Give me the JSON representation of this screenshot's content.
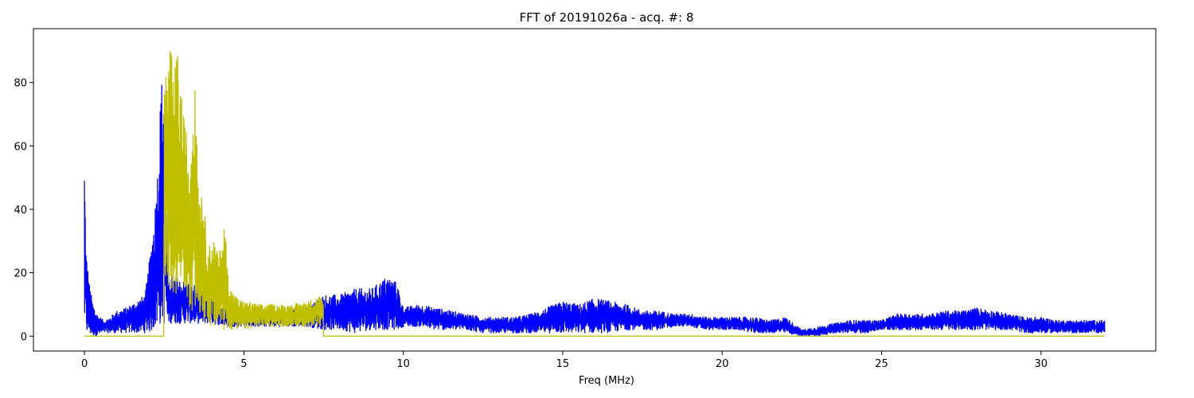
{
  "chart_data": {
    "type": "line",
    "title": "FFT of 20191026a - acq. #: 8",
    "xlabel": "Freq (MHz)",
    "ylabel": "",
    "xlim": [
      -1.6,
      33.6
    ],
    "ylim": [
      -4.7,
      97.0
    ],
    "xticks": [
      0,
      5,
      10,
      15,
      20,
      25,
      30
    ],
    "yticks": [
      0,
      20,
      40,
      60,
      80
    ],
    "grid": false,
    "legend": "none",
    "series": [
      {
        "color": "#0000ff",
        "envelope": [
          [
            0.0,
            0,
            58
          ],
          [
            0.05,
            0,
            28
          ],
          [
            0.15,
            0,
            17
          ],
          [
            0.25,
            0,
            11
          ],
          [
            0.4,
            0,
            7
          ],
          [
            0.6,
            1,
            5
          ],
          [
            0.8,
            1,
            6
          ],
          [
            1.0,
            1,
            8
          ],
          [
            1.3,
            1,
            9
          ],
          [
            1.6,
            1,
            11
          ],
          [
            1.9,
            1,
            13
          ],
          [
            2.05,
            1,
            25
          ],
          [
            2.2,
            2,
            40
          ],
          [
            2.3,
            2,
            55
          ],
          [
            2.4,
            3,
            80
          ],
          [
            2.5,
            3,
            88
          ],
          [
            2.6,
            4,
            20
          ],
          [
            3.0,
            4,
            18
          ],
          [
            3.5,
            4,
            16
          ],
          [
            4.0,
            4,
            12
          ],
          [
            4.5,
            3,
            9
          ],
          [
            5.0,
            3,
            8
          ],
          [
            6.0,
            3,
            8
          ],
          [
            7.0,
            3,
            9
          ],
          [
            7.5,
            2,
            13
          ],
          [
            8.0,
            2,
            13
          ],
          [
            8.5,
            1,
            15
          ],
          [
            9.0,
            2,
            15
          ],
          [
            9.5,
            2,
            19
          ],
          [
            9.8,
            2,
            17
          ],
          [
            10.0,
            3,
            9
          ],
          [
            10.5,
            3,
            10
          ],
          [
            11.0,
            2,
            9
          ],
          [
            11.5,
            2,
            8
          ],
          [
            12.0,
            2,
            7
          ],
          [
            12.5,
            1,
            6
          ],
          [
            13.0,
            1,
            6
          ],
          [
            13.5,
            1,
            6
          ],
          [
            14.0,
            1,
            7
          ],
          [
            14.5,
            1,
            9
          ],
          [
            15.0,
            1,
            11
          ],
          [
            15.5,
            1,
            10
          ],
          [
            16.0,
            1,
            12
          ],
          [
            16.5,
            1,
            11
          ],
          [
            17.0,
            2,
            10
          ],
          [
            17.5,
            2,
            8
          ],
          [
            18.0,
            2,
            8
          ],
          [
            18.5,
            3,
            7
          ],
          [
            19.0,
            3,
            7
          ],
          [
            19.5,
            2,
            6
          ],
          [
            20.0,
            2,
            6
          ],
          [
            20.5,
            2,
            6
          ],
          [
            21.0,
            1,
            6
          ],
          [
            21.5,
            1,
            5
          ],
          [
            22.0,
            1,
            6
          ],
          [
            22.5,
            0,
            2
          ],
          [
            23.0,
            0,
            3
          ],
          [
            23.5,
            1,
            4
          ],
          [
            24.0,
            1,
            5
          ],
          [
            24.5,
            1,
            5
          ],
          [
            25.0,
            2,
            5
          ],
          [
            25.5,
            2,
            7
          ],
          [
            26.0,
            2,
            7
          ],
          [
            26.5,
            2,
            7
          ],
          [
            27.0,
            2,
            8
          ],
          [
            27.5,
            2,
            8
          ],
          [
            28.0,
            2,
            9
          ],
          [
            28.5,
            2,
            8
          ],
          [
            29.0,
            2,
            7
          ],
          [
            29.5,
            1,
            6
          ],
          [
            30.0,
            1,
            6
          ],
          [
            30.5,
            1,
            5
          ],
          [
            31.0,
            1,
            5
          ],
          [
            31.5,
            1,
            5
          ],
          [
            32.0,
            1,
            5
          ]
        ]
      },
      {
        "color": "#bfbf00",
        "envelope": [
          [
            0.0,
            0,
            0
          ],
          [
            2.49,
            0,
            0
          ],
          [
            2.5,
            20,
            88
          ],
          [
            2.6,
            10,
            85
          ],
          [
            2.7,
            15,
            93
          ],
          [
            2.8,
            12,
            80
          ],
          [
            2.9,
            14,
            92
          ],
          [
            3.0,
            12,
            83
          ],
          [
            3.1,
            16,
            70
          ],
          [
            3.2,
            10,
            65
          ],
          [
            3.3,
            8,
            55
          ],
          [
            3.4,
            8,
            78
          ],
          [
            3.5,
            8,
            78
          ],
          [
            3.6,
            6,
            45
          ],
          [
            3.7,
            4,
            50
          ],
          [
            3.8,
            4,
            35
          ],
          [
            3.9,
            4,
            28
          ],
          [
            4.0,
            2,
            32
          ],
          [
            4.1,
            2,
            30
          ],
          [
            4.2,
            2,
            25
          ],
          [
            4.3,
            2,
            30
          ],
          [
            4.4,
            2,
            37
          ],
          [
            4.5,
            2,
            20
          ],
          [
            4.6,
            2,
            15
          ],
          [
            4.8,
            2,
            12
          ],
          [
            5.0,
            2,
            11
          ],
          [
            5.5,
            3,
            10
          ],
          [
            6.0,
            3,
            10
          ],
          [
            6.5,
            3,
            10
          ],
          [
            7.0,
            3,
            11
          ],
          [
            7.4,
            3,
            13
          ],
          [
            7.49,
            5,
            10
          ],
          [
            7.5,
            0,
            0
          ],
          [
            32.0,
            0,
            0
          ]
        ]
      }
    ]
  }
}
